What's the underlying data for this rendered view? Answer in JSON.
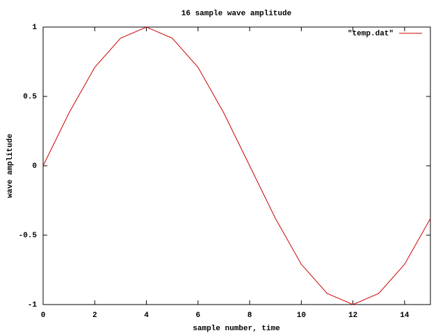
{
  "chart_data": {
    "type": "line",
    "title": "16 sample wave amplitude",
    "x_label": "sample number, time",
    "y_label": "wave amplitude",
    "x": [
      0,
      1,
      2,
      3,
      4,
      5,
      6,
      7,
      8,
      9,
      10,
      11,
      12,
      13,
      14,
      15
    ],
    "series": [
      {
        "name": "\"temp.dat\"",
        "color": "#cc0000",
        "values": [
          0,
          0.38,
          0.71,
          0.92,
          1,
          0.92,
          0.71,
          0.38,
          0,
          -0.38,
          -0.71,
          -0.92,
          -1,
          -0.92,
          -0.71,
          -0.38
        ]
      }
    ],
    "xlim": [
      0,
      15
    ],
    "xticks": [
      0,
      2,
      4,
      6,
      8,
      10,
      12,
      14
    ],
    "ylim": [
      -1,
      1
    ],
    "yticks": [
      -1,
      -0.5,
      0,
      0.5,
      1
    ],
    "grid": false,
    "legend": "top-right"
  }
}
